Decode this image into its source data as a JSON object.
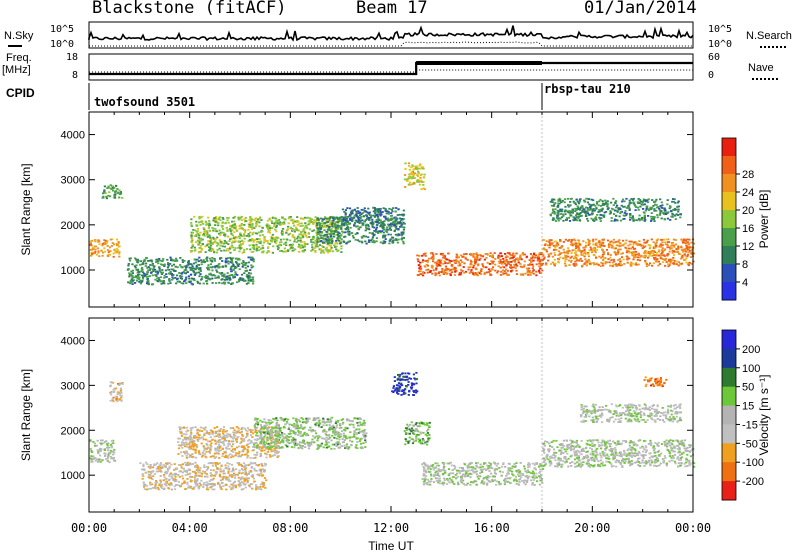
{
  "header": {
    "radar": "Blackstone (fitACF)",
    "beam": "Beam 17",
    "date": "01/Jan/2014"
  },
  "top_panel": {
    "left_label": "N.Sky",
    "right_label": "N.Search",
    "left_ticks": [
      "10^5",
      "10^0"
    ],
    "right_ticks": [
      "10^5",
      "10^0"
    ]
  },
  "freq_panel": {
    "left_label_1": "Freq.",
    "left_label_2": "[MHz]",
    "right_label": "Nave",
    "left_ticks": [
      "18",
      "8"
    ],
    "right_ticks": [
      "60",
      "0"
    ]
  },
  "cpid": {
    "label": "CPID",
    "programs": [
      "twofsound 3501",
      "rbsp-tau 210"
    ]
  },
  "colors": {
    "power": [
      "#2a32e6",
      "#2a4fb8",
      "#2e7f5a",
      "#4aa04a",
      "#8cc83a",
      "#e8c020",
      "#f09020",
      "#f06018",
      "#e82010"
    ],
    "velocity": [
      "#2828d8",
      "#1c3a9a",
      "#2e7a2e",
      "#6cc838",
      "#b4b4b4",
      "#c0c0c0",
      "#f0a020",
      "#ee7010",
      "#e82018"
    ]
  },
  "chart_data": [
    {
      "type": "heatmap",
      "title": "Power",
      "ylabel": "Slant Range [km]",
      "xlabel": "",
      "xlim": [
        "00:00",
        "24:00"
      ],
      "ylim": [
        180,
        4500
      ],
      "y_ticks": [
        "1000",
        "2000",
        "3000",
        "4000"
      ],
      "colorbar": {
        "label": "Power [dB]",
        "ticks": [
          "4",
          "8",
          "12",
          "16",
          "20",
          "24",
          "28"
        ],
        "range": [
          0,
          32
        ]
      },
      "regions": [
        {
          "t0": 0.0,
          "t1": 1.2,
          "r0": 1300,
          "r1": 1700,
          "value": 22
        },
        {
          "t0": 0.5,
          "t1": 1.3,
          "r0": 2600,
          "r1": 2900,
          "value": 12
        },
        {
          "t0": 1.5,
          "t1": 6.5,
          "r0": 700,
          "r1": 1300,
          "value": 10
        },
        {
          "t0": 4.0,
          "t1": 10.0,
          "r0": 1400,
          "r1": 2200,
          "value": 16
        },
        {
          "t0": 9.0,
          "t1": 12.5,
          "r0": 1600,
          "r1": 2200,
          "value": 10
        },
        {
          "t0": 10.0,
          "t1": 12.5,
          "r0": 2000,
          "r1": 2400,
          "value": 8
        },
        {
          "t0": 12.5,
          "t1": 13.3,
          "r0": 2800,
          "r1": 3400,
          "value": 18
        },
        {
          "t0": 13.0,
          "t1": 18.0,
          "r0": 900,
          "r1": 1400,
          "value": 26
        },
        {
          "t0": 18.0,
          "t1": 24.0,
          "r0": 1100,
          "r1": 1700,
          "value": 24
        },
        {
          "t0": 18.3,
          "t1": 23.5,
          "r0": 2100,
          "r1": 2600,
          "value": 10
        }
      ]
    },
    {
      "type": "heatmap",
      "title": "Velocity",
      "ylabel": "Slant Range [km]",
      "xlabel": "Time UT",
      "x_ticks": [
        "00:00",
        "04:00",
        "08:00",
        "12:00",
        "16:00",
        "20:00",
        "00:00"
      ],
      "xlim": [
        "00:00",
        "24:00"
      ],
      "ylim": [
        180,
        4500
      ],
      "y_ticks": [
        "1000",
        "2000",
        "3000",
        "4000"
      ],
      "colorbar": {
        "label": "Velocity [m s⁻¹]",
        "ticks": [
          "200",
          "100",
          "50",
          "15",
          "-15",
          "-50",
          "-100",
          "-200"
        ],
        "range": [
          -250,
          250
        ]
      },
      "regions": [
        {
          "t0": 0.0,
          "t1": 1.0,
          "r0": 1300,
          "r1": 1800,
          "value": 0
        },
        {
          "t0": 0.8,
          "t1": 1.3,
          "r0": 2600,
          "r1": 3100,
          "value": -80
        },
        {
          "t0": 2.0,
          "t1": 7.0,
          "r0": 700,
          "r1": 1300,
          "value": -60
        },
        {
          "t0": 3.5,
          "t1": 7.5,
          "r0": 1400,
          "r1": 2100,
          "value": -70
        },
        {
          "t0": 6.5,
          "t1": 11.0,
          "r0": 1600,
          "r1": 2300,
          "value": 30
        },
        {
          "t0": 12.0,
          "t1": 13.0,
          "r0": 2800,
          "r1": 3300,
          "value": 180
        },
        {
          "t0": 12.5,
          "t1": 13.5,
          "r0": 1700,
          "r1": 2200,
          "value": 60
        },
        {
          "t0": 13.2,
          "t1": 18.0,
          "r0": 800,
          "r1": 1300,
          "value": 0
        },
        {
          "t0": 18.0,
          "t1": 24.0,
          "r0": 1200,
          "r1": 1800,
          "value": 0
        },
        {
          "t0": 19.5,
          "t1": 23.5,
          "r0": 2200,
          "r1": 2600,
          "value": 0
        },
        {
          "t0": 22.0,
          "t1": 23.0,
          "r0": 3000,
          "r1": 3200,
          "value": -150
        }
      ]
    }
  ]
}
